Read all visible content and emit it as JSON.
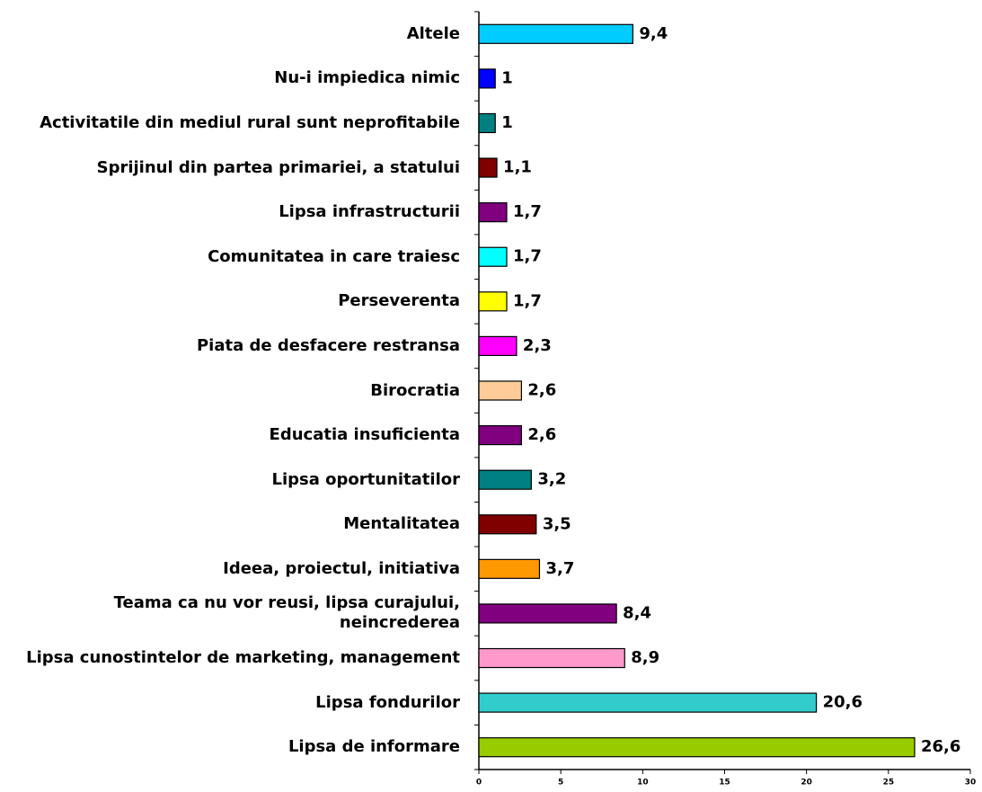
{
  "chart_data": {
    "type": "bar",
    "orientation": "horizontal",
    "categories": [
      "Altele",
      "Nu-i impiedica nimic",
      "Activitatile din mediul rural sunt neprofitabile",
      "Sprijinul din partea primariei, a statului",
      "Lipsa infrastructurii",
      "Comunitatea in care traiesc",
      "Perseverenta",
      "Piata de desfacere restransa",
      "Birocratia",
      "Educatia insuficienta",
      "Lipsa oportunitatilor",
      "Mentalitatea",
      "Ideea, proiectul, initiativa",
      "Teama ca nu vor reusi, lipsa curajului, neincrederea",
      "Lipsa cunostintelor de marketing, management",
      "Lipsa fondurilor",
      "Lipsa de informare"
    ],
    "values": [
      9.4,
      1,
      1,
      1.1,
      1.7,
      1.7,
      1.7,
      2.3,
      2.6,
      2.6,
      3.2,
      3.5,
      3.7,
      8.4,
      8.9,
      20.6,
      26.6
    ],
    "value_labels": [
      "9,4",
      "1",
      "1",
      "1,1",
      "1,7",
      "1,7",
      "1,7",
      "2,3",
      "2,6",
      "2,6",
      "3,2",
      "3,5",
      "3,7",
      "8,4",
      "8,9",
      "20,6",
      "26,6"
    ],
    "colors": [
      "#00ccff",
      "#0000ff",
      "#008080",
      "#800000",
      "#800080",
      "#00ffff",
      "#ffff00",
      "#ff00ff",
      "#ffcc99",
      "#800080",
      "#008080",
      "#800000",
      "#ff9900",
      "#800080",
      "#ff99cc",
      "#33cccc",
      "#99cc00"
    ],
    "xlim": [
      0,
      30
    ],
    "xticks": [
      0,
      5,
      10,
      15,
      20,
      25,
      30
    ],
    "grid": false
  }
}
